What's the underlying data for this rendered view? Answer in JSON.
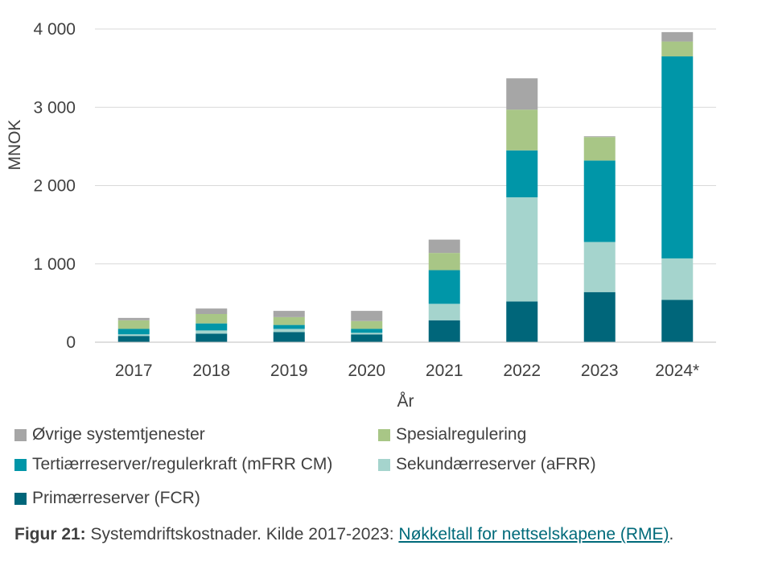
{
  "chart_data": {
    "type": "bar",
    "stacked": true,
    "title": "",
    "xlabel": "År",
    "ylabel": "MNOK",
    "ylim": [
      0,
      4000
    ],
    "yticks": [
      0,
      1000,
      2000,
      3000,
      4000
    ],
    "ytick_labels": [
      "0",
      "1 000",
      "2 000",
      "3 000",
      "4 000"
    ],
    "grid": true,
    "categories": [
      "2017",
      "2018",
      "2019",
      "2020",
      "2021",
      "2022",
      "2023",
      "2024*"
    ],
    "series": [
      {
        "name": "Primærreserver (FCR)",
        "color": "#00667a",
        "values": [
          80,
          110,
          130,
          100,
          280,
          520,
          640,
          540
        ]
      },
      {
        "name": "Sekundærreserver (aFRR)",
        "color": "#a5d4cd",
        "values": [
          20,
          40,
          40,
          20,
          210,
          1330,
          640,
          530
        ]
      },
      {
        "name": "Tertiærreserver/regulerkraft (mFRR CM)",
        "color": "#0096a8",
        "values": [
          70,
          90,
          50,
          50,
          430,
          600,
          1040,
          2580
        ]
      },
      {
        "name": "Spesialregulering",
        "color": "#a8c686",
        "values": [
          110,
          120,
          100,
          100,
          220,
          520,
          300,
          190
        ]
      },
      {
        "name": "Øvrige systemtjenester",
        "color": "#a6a6a6",
        "values": [
          30,
          70,
          80,
          130,
          170,
          400,
          10,
          120
        ]
      }
    ],
    "legend_order": [
      4,
      3,
      2,
      1,
      0
    ]
  },
  "caption": {
    "label": "Figur 21:",
    "text": " Systemdriftskostnader. Kilde 2017-2023: ",
    "link": "Nøkkeltall for nettselskapene (RME)",
    "end": "."
  }
}
